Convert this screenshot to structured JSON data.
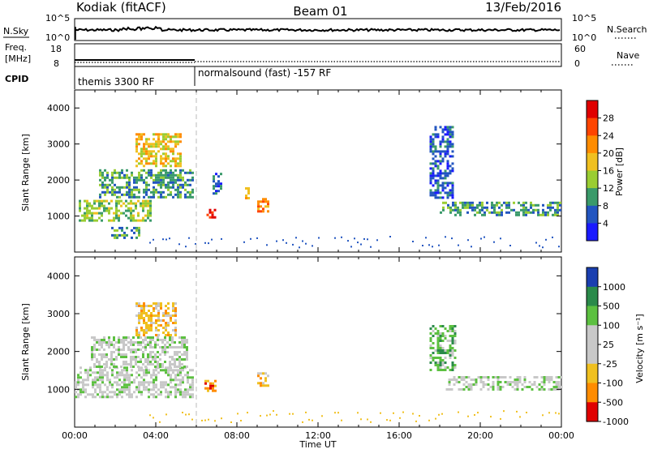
{
  "header": {
    "station": "Kodiak (fitACF)",
    "beam": "Beam 01",
    "date": "13/Feb/2016"
  },
  "top_panel": {
    "left_label": "N.Sky",
    "right_label": "N.Search",
    "left_ticks": [
      "10^5",
      "10^0"
    ],
    "right_ticks": [
      "10^5",
      "10^0"
    ]
  },
  "freq_panel": {
    "left_label_1": "Freq.",
    "left_label_2": "[MHz]",
    "right_label": "Nave",
    "left_ticks": [
      "18",
      "8"
    ],
    "right_ticks": [
      "60",
      "0"
    ]
  },
  "cpid": {
    "label": "CPID",
    "segments": [
      {
        "text": "themis 3300 RF",
        "start_hour": 0
      },
      {
        "text": "normalsound (fast) -157 RF",
        "start_hour": 6
      }
    ]
  },
  "chart_data": [
    {
      "type": "heatmap",
      "name": "power",
      "ylabel": "Slant Range [km]",
      "xlabel": "Time UT",
      "ylim": [
        0,
        4500
      ],
      "xlim_hours": [
        0,
        24
      ],
      "yticks": [
        1000,
        2000,
        3000,
        4000
      ],
      "colorbar": {
        "label": "Power [dB]",
        "ticks": [
          "4",
          "8",
          "12",
          "16",
          "20",
          "24",
          "28"
        ],
        "colors": [
          "#1a1aff",
          "#2255c0",
          "#3a9a6a",
          "#9acd32",
          "#f0c020",
          "#ff8c00",
          "#ff4500",
          "#e00000"
        ]
      },
      "regions": [
        {
          "start_hour": 0.2,
          "end_hour": 3.8,
          "range_km": [
            850,
            1450
          ],
          "level": 3
        },
        {
          "start_hour": 1.2,
          "end_hour": 5.8,
          "range_km": [
            1500,
            2300
          ],
          "level": 2
        },
        {
          "start_hour": 3.0,
          "end_hour": 5.2,
          "range_km": [
            2400,
            3300
          ],
          "level": 4
        },
        {
          "start_hour": 1.8,
          "end_hour": 3.2,
          "range_km": [
            400,
            700
          ],
          "level": 2
        },
        {
          "start_hour": 6.5,
          "end_hour": 6.9,
          "range_km": [
            950,
            1200
          ],
          "level": 7
        },
        {
          "start_hour": 6.8,
          "end_hour": 7.2,
          "range_km": [
            1600,
            2200
          ],
          "level": 1
        },
        {
          "start_hour": 8.4,
          "end_hour": 8.6,
          "range_km": [
            1500,
            1800
          ],
          "level": 4
        },
        {
          "start_hour": 9.0,
          "end_hour": 9.6,
          "range_km": [
            1100,
            1500
          ],
          "level": 5
        },
        {
          "start_hour": 17.5,
          "end_hour": 18.6,
          "range_km": [
            1500,
            3500
          ],
          "level": 1
        },
        {
          "start_hour": 18.0,
          "end_hour": 24.0,
          "range_km": [
            1000,
            1400
          ],
          "level": 2
        }
      ]
    },
    {
      "type": "heatmap",
      "name": "velocity",
      "ylabel": "Slant Range [km]",
      "xlabel": "Time UT",
      "ylim": [
        0,
        4500
      ],
      "xlim_hours": [
        0,
        24
      ],
      "yticks": [
        1000,
        2000,
        3000,
        4000
      ],
      "xticks": [
        "00:00",
        "04:00",
        "08:00",
        "12:00",
        "16:00",
        "20:00",
        "00:00"
      ],
      "colorbar": {
        "label": "Velocity [m s⁻¹]",
        "ticks": [
          "1000",
          "500",
          "100",
          "25",
          "-25",
          "-100",
          "-500",
          "-1000"
        ],
        "colors": [
          "#1a3fb0",
          "#2a8a4a",
          "#5cc040",
          "#c8c8c8",
          "#c8c8c8",
          "#f0c020",
          "#ff8c00",
          "#e00000"
        ]
      },
      "regions": [
        {
          "start_hour": 0.0,
          "end_hour": 5.8,
          "range_km": [
            800,
            1600
          ],
          "level": 3
        },
        {
          "start_hour": 0.8,
          "end_hour": 5.5,
          "range_km": [
            1600,
            2400
          ],
          "level": 3
        },
        {
          "start_hour": 3.0,
          "end_hour": 5.0,
          "range_km": [
            2400,
            3300
          ],
          "level": 5
        },
        {
          "start_hour": 6.4,
          "end_hour": 6.9,
          "range_km": [
            950,
            1250
          ],
          "level": 6
        },
        {
          "start_hour": 9.0,
          "end_hour": 9.5,
          "range_km": [
            1100,
            1450
          ],
          "level": 5
        },
        {
          "start_hour": 17.5,
          "end_hour": 18.8,
          "range_km": [
            1500,
            2700
          ],
          "level": 2
        },
        {
          "start_hour": 18.3,
          "end_hour": 24.0,
          "range_km": [
            1000,
            1350
          ],
          "level": 3
        }
      ]
    }
  ]
}
